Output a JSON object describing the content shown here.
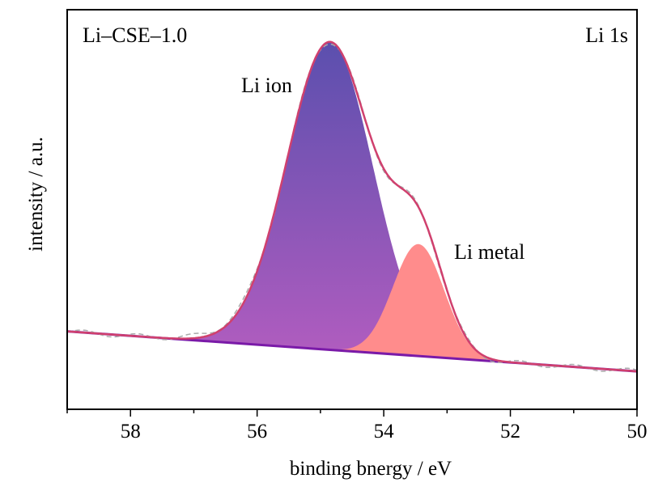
{
  "chart_data": {
    "type": "area",
    "title": "",
    "xlabel": "binding bnergy / eV",
    "ylabel": "intensity / a.u.",
    "xlim": [
      59,
      50
    ],
    "x_reversed": true,
    "ylim": [
      0,
      1
    ],
    "y_ticks_shown": false,
    "x_ticks": [
      58,
      56,
      54,
      52,
      50
    ],
    "grid": false,
    "annotations": {
      "sample": "Li–CSE–1.0",
      "core_level": "Li 1s",
      "peak1": "Li ion",
      "peak2": "Li metal"
    },
    "baseline": {
      "x": [
        59,
        50
      ],
      "y": [
        0.195,
        0.095
      ]
    },
    "series": [
      {
        "name": "Li ion",
        "kind": "gaussian-component",
        "center": 54.85,
        "fwhm": 1.6,
        "height": 0.77,
        "color_top": "#5b4fae",
        "color_bottom": "#b55dc0"
      },
      {
        "name": "Li metal",
        "kind": "gaussian-component",
        "center": 53.45,
        "fwhm": 0.95,
        "height": 0.28,
        "color": "#ff8c8c"
      },
      {
        "name": "envelope",
        "kind": "fit-envelope",
        "color": "#d0406e"
      },
      {
        "name": "raw",
        "kind": "measured",
        "color": "#aaaaaa",
        "style": "dashed"
      },
      {
        "name": "background",
        "kind": "baseline",
        "color": "#7a1aa8"
      }
    ],
    "colors": {
      "envelope": "#d0406e",
      "baseline": "#7a1aa8",
      "raw": "#aaaaaa",
      "metal": "#ff8c8c",
      "ion_top": "#5b4fae",
      "ion_bottom": "#b55dc0"
    }
  }
}
